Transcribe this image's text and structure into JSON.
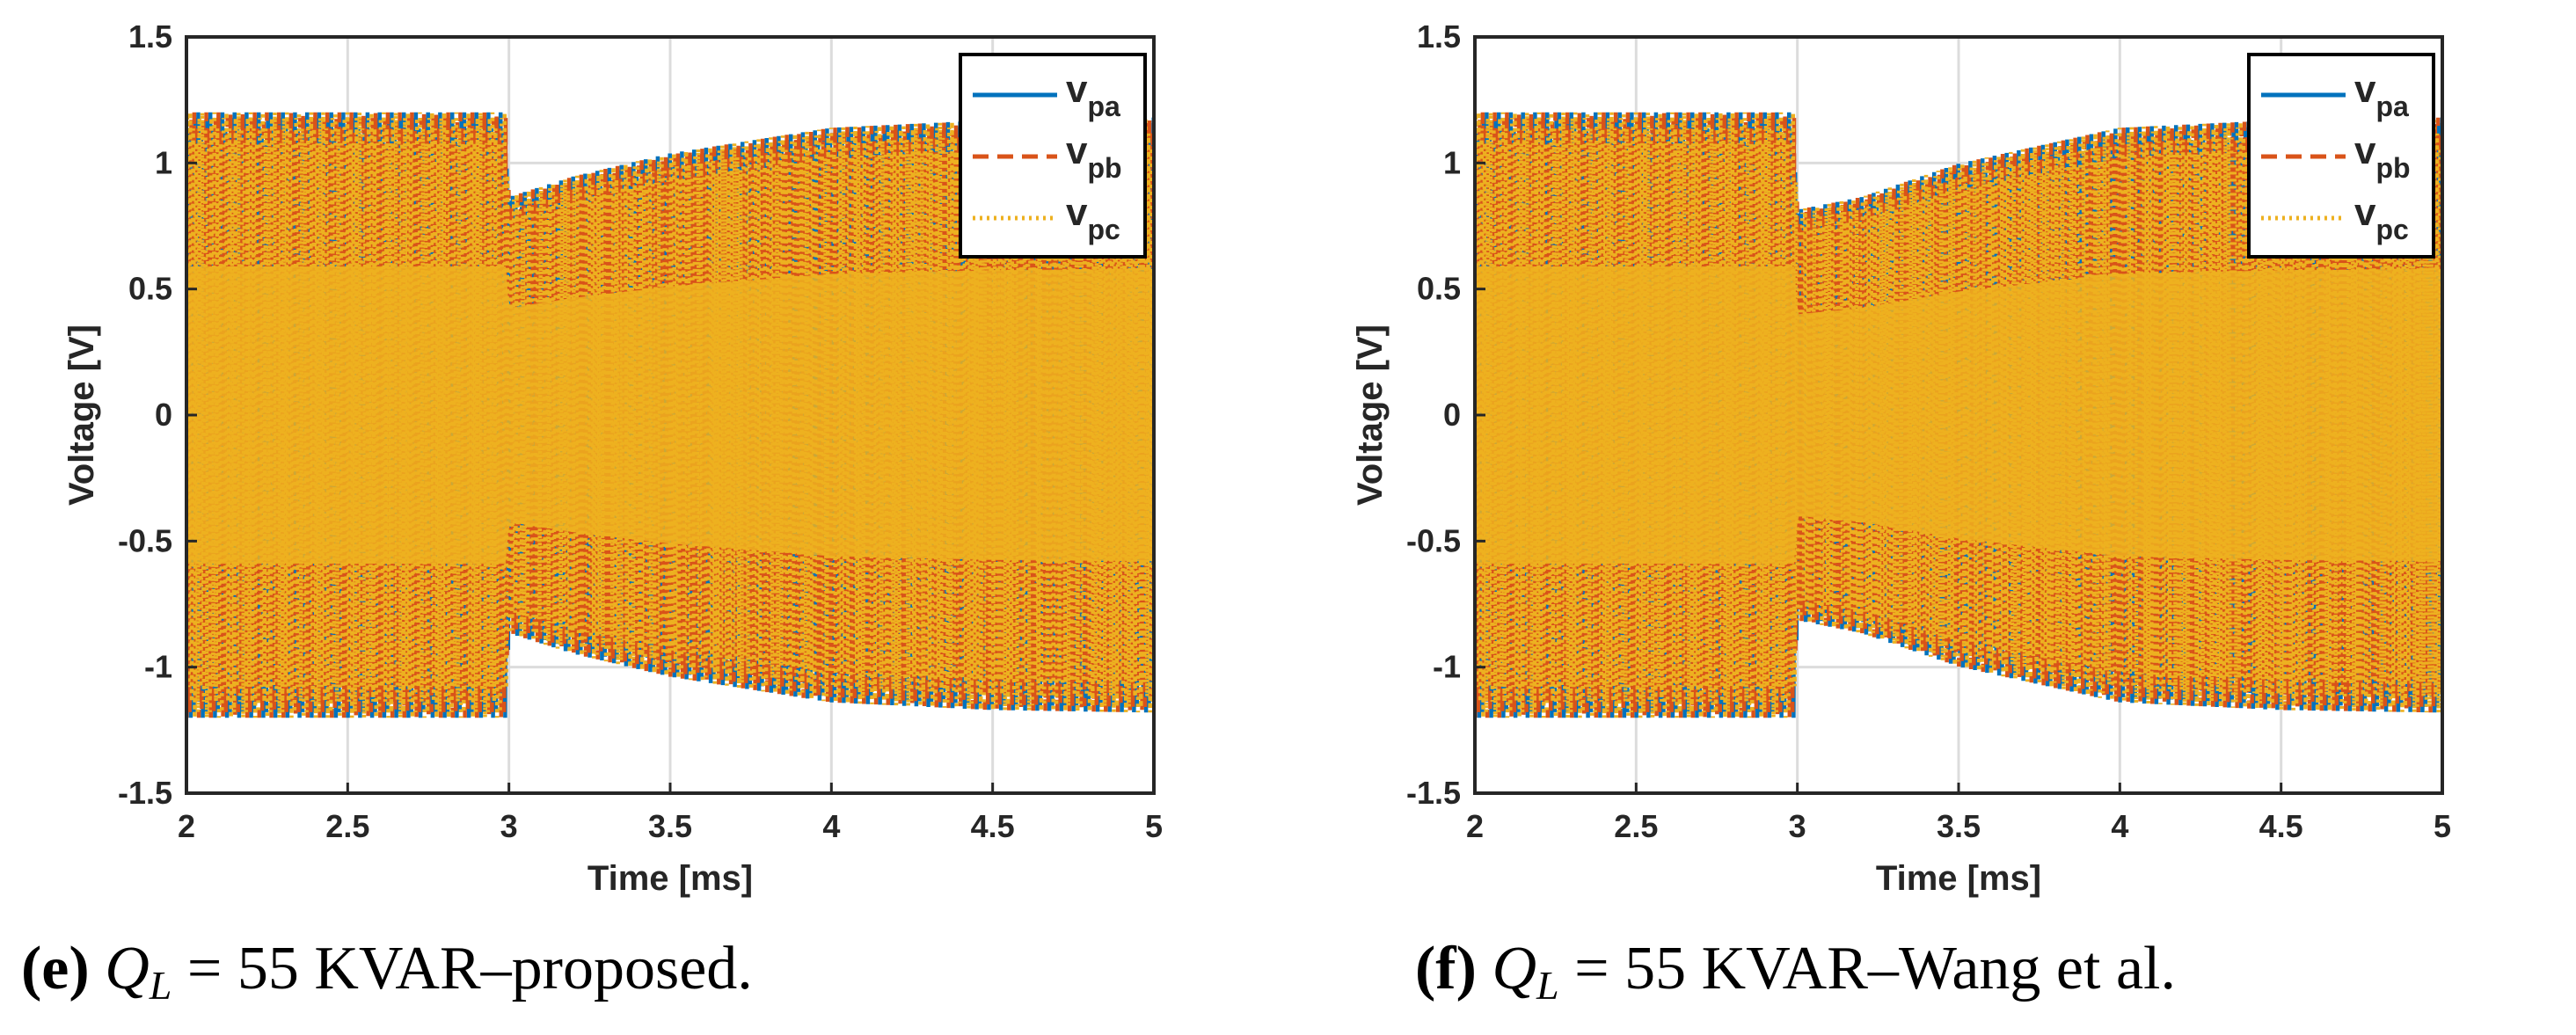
{
  "colors": {
    "phase_a": "#0072BD",
    "phase_b": "#D95319",
    "phase_c": "#EDB120",
    "grid": "#DCDCDC",
    "axis": "#262626"
  },
  "chart_data": [
    {
      "type": "line",
      "panel": "e",
      "xlabel": "Time [ms]",
      "ylabel": "Voltage [V]",
      "xlim": [
        2,
        5
      ],
      "ylim": [
        -1.5,
        1.5
      ],
      "xticks": [
        2,
        2.5,
        3,
        3.5,
        4,
        4.5,
        5
      ],
      "xtick_labels": [
        "2",
        "2.5",
        "3",
        "3.5",
        "4",
        "4.5",
        "5"
      ],
      "yticks": [
        -1.5,
        -1,
        -0.5,
        0,
        0.5,
        1,
        1.5
      ],
      "ytick_labels": [
        "-1.5",
        "-1",
        "-0.5",
        "0",
        "0.5",
        "1",
        "1.5"
      ],
      "grid": true,
      "legend_position": "top-right",
      "legend": [
        {
          "base": "v",
          "sub": "pa",
          "style": "solid"
        },
        {
          "base": "v",
          "sub": "pb",
          "style": "dashed"
        },
        {
          "base": "v",
          "sub": "pc",
          "style": "dotted"
        }
      ],
      "series": [
        {
          "name": "v_pa",
          "waveform": "three-phase sinusoid, amplitude envelope",
          "envelope": {
            "t": [
              2,
              2.99,
              3.0,
              3.2,
              3.5,
              4.0,
              4.5,
              5
            ],
            "amplitude": [
              1.18,
              1.18,
              0.85,
              0.93,
              1.02,
              1.12,
              1.15,
              1.16
            ]
          },
          "cycles": 320
        },
        {
          "name": "v_pb",
          "waveform": "three-phase sinusoid, amplitude envelope",
          "envelope": {
            "t": [
              2,
              2.99,
              3.0,
              3.2,
              3.5,
              4.0,
              4.5,
              5
            ],
            "amplitude": [
              1.18,
              1.18,
              0.85,
              0.93,
              1.02,
              1.12,
              1.15,
              1.16
            ]
          },
          "cycles": 320
        },
        {
          "name": "v_pc",
          "waveform": "three-phase sinusoid, amplitude envelope",
          "envelope": {
            "t": [
              2,
              2.99,
              3.0,
              3.2,
              3.5,
              4.0,
              4.5,
              5
            ],
            "amplitude": [
              1.18,
              1.18,
              0.85,
              0.93,
              1.02,
              1.12,
              1.15,
              1.16
            ]
          },
          "cycles": 320
        }
      ]
    },
    {
      "type": "line",
      "panel": "f",
      "xlabel": "Time [ms]",
      "ylabel": "Voltage [V]",
      "xlim": [
        2,
        5
      ],
      "ylim": [
        -1.5,
        1.5
      ],
      "xticks": [
        2,
        2.5,
        3,
        3.5,
        4,
        4.5,
        5
      ],
      "xtick_labels": [
        "2",
        "2.5",
        "3",
        "3.5",
        "4",
        "4.5",
        "5"
      ],
      "yticks": [
        -1.5,
        -1,
        -0.5,
        0,
        0.5,
        1,
        1.5
      ],
      "ytick_labels": [
        "-1.5",
        "-1",
        "-0.5",
        "0",
        "0.5",
        "1",
        "1.5"
      ],
      "grid": true,
      "legend_position": "top-right",
      "legend": [
        {
          "base": "v",
          "sub": "pa",
          "style": "solid"
        },
        {
          "base": "v",
          "sub": "pb",
          "style": "dashed"
        },
        {
          "base": "v",
          "sub": "pc",
          "style": "dotted"
        }
      ],
      "series": [
        {
          "name": "v_pa",
          "waveform": "three-phase sinusoid, amplitude envelope",
          "envelope": {
            "t": [
              2,
              2.99,
              3.0,
              3.2,
              3.5,
              4.0,
              4.5,
              5
            ],
            "amplitude": [
              1.18,
              1.18,
              0.8,
              0.85,
              0.98,
              1.12,
              1.15,
              1.16
            ]
          },
          "cycles": 320
        },
        {
          "name": "v_pb",
          "waveform": "three-phase sinusoid, amplitude envelope",
          "envelope": {
            "t": [
              2,
              2.99,
              3.0,
              3.2,
              3.5,
              4.0,
              4.5,
              5
            ],
            "amplitude": [
              1.18,
              1.18,
              0.8,
              0.85,
              0.98,
              1.12,
              1.15,
              1.16
            ]
          },
          "cycles": 320
        },
        {
          "name": "v_pc",
          "waveform": "three-phase sinusoid, amplitude envelope",
          "envelope": {
            "t": [
              2,
              2.99,
              3.0,
              3.2,
              3.5,
              4.0,
              4.5,
              5
            ],
            "amplitude": [
              1.18,
              1.18,
              0.8,
              0.85,
              0.98,
              1.12,
              1.15,
              1.16
            ]
          },
          "cycles": 320
        }
      ]
    }
  ],
  "captions": [
    {
      "tag": "(e)",
      "math_base": "Q",
      "math_sub": "L",
      "rest": " = 55 KVAR–proposed."
    },
    {
      "tag": "(f)",
      "math_base": "Q",
      "math_sub": "L",
      "rest": " = 55 KVAR–Wang et al."
    }
  ]
}
